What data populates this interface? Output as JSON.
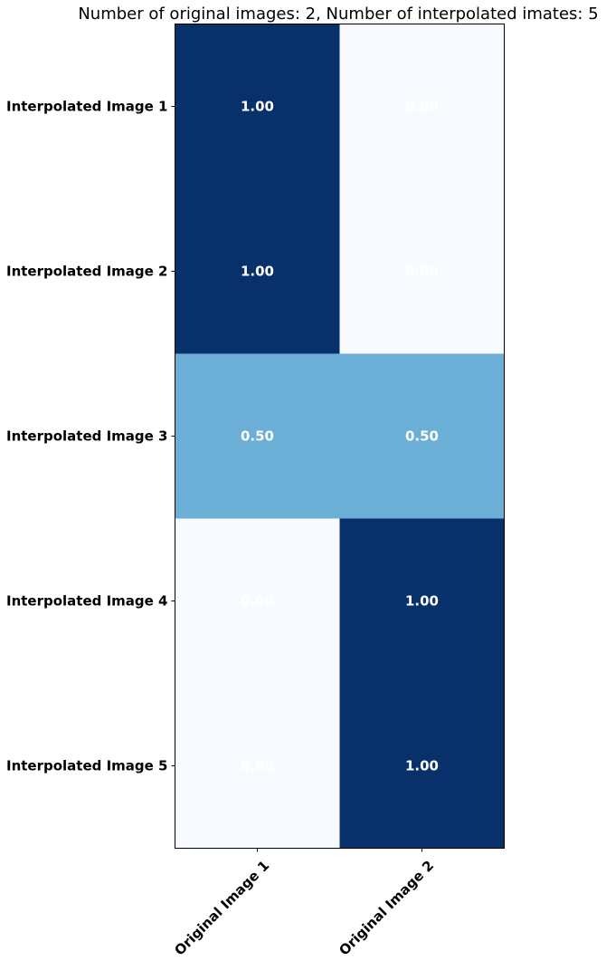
{
  "chart_data": {
    "type": "heatmap",
    "title": "Number of original images: 2, Number of interpolated imates: 5",
    "xlabel": "",
    "ylabel": "",
    "x_categories": [
      "Original Image 1",
      "Original Image 2"
    ],
    "y_categories": [
      "Interpolated Image 1",
      "Interpolated Image 2",
      "Interpolated Image 3",
      "Interpolated Image 4",
      "Interpolated Image 5"
    ],
    "values": [
      [
        1.0,
        0.0
      ],
      [
        1.0,
        0.0
      ],
      [
        0.5,
        0.5
      ],
      [
        0.0,
        1.0
      ],
      [
        0.0,
        1.0
      ]
    ],
    "value_labels": [
      [
        "1.00",
        "0.00"
      ],
      [
        "1.00",
        "0.00"
      ],
      [
        "0.50",
        "0.50"
      ],
      [
        "0.00",
        "1.00"
      ],
      [
        "0.00",
        "1.00"
      ]
    ],
    "colormap": "Blues",
    "vmin": 0,
    "vmax": 1,
    "colors": {
      "low": "#f7fbff",
      "mid": "#6baed6",
      "high": "#08306b",
      "cell_text": "#ffffff"
    },
    "grid": false,
    "legend": "none"
  }
}
